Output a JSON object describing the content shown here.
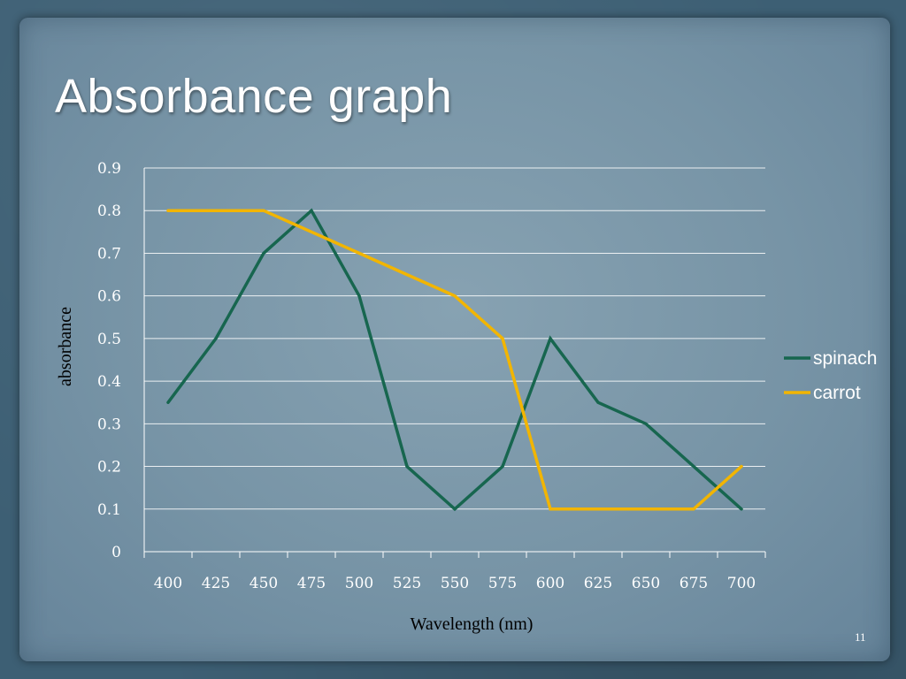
{
  "slide": {
    "title": "Absorbance graph",
    "page_number": "11"
  },
  "chart_data": {
    "type": "line",
    "x": [
      "400",
      "425",
      "450",
      "475",
      "500",
      "525",
      "550",
      "575",
      "600",
      "625",
      "650",
      "675",
      "700"
    ],
    "xlabel": "Wavelength (nm)",
    "ylabel": "absorbance",
    "ylim": [
      0,
      0.9
    ],
    "yticks": [
      "0",
      "0.1",
      "0.2",
      "0.3",
      "0.4",
      "0.5",
      "0.6",
      "0.7",
      "0.8",
      "0.9"
    ],
    "grid": true,
    "legend_position": "right",
    "series": [
      {
        "name": "spinach",
        "color": "#17664f",
        "values": [
          0.35,
          0.5,
          0.7,
          0.8,
          0.6,
          0.2,
          0.1,
          0.2,
          0.5,
          0.35,
          0.3,
          0.2,
          0.1
        ]
      },
      {
        "name": "carrot",
        "color": "#f2b500",
        "values": [
          0.8,
          0.8,
          0.8,
          0.75,
          0.7,
          0.65,
          0.6,
          0.5,
          0.1,
          0.1,
          0.1,
          0.1,
          0.2
        ]
      }
    ]
  }
}
